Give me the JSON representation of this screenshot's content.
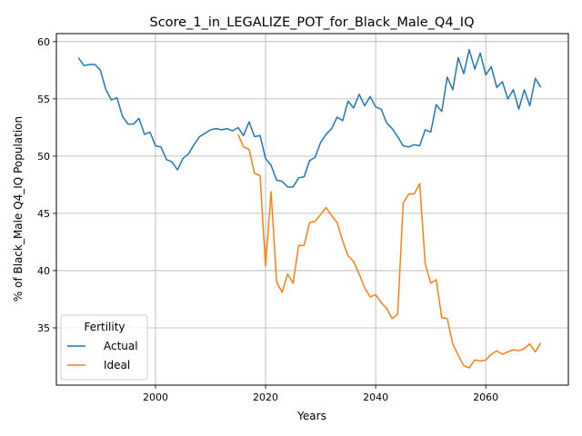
{
  "chart_data": {
    "type": "line",
    "title": "Score_1_in_LEGALIZE_POT_for_Black_Male_Q4_IQ",
    "xlabel": "Years",
    "ylabel": "% of Black_Male Q4_IQ Population",
    "xlim": [
      1982,
      2075
    ],
    "ylim": [
      30,
      60.7
    ],
    "xticks": [
      2000,
      2020,
      2040,
      2060
    ],
    "yticks": [
      35,
      40,
      45,
      50,
      55,
      60
    ],
    "grid": true,
    "legend": {
      "title": "Fertility",
      "placement": "lower-left"
    },
    "series": [
      {
        "name": "Actual",
        "color": "#1f77b4",
        "x": [
          1986,
          1987,
          1988,
          1989,
          1990,
          1991,
          1992,
          1993,
          1994,
          1995,
          1996,
          1997,
          1998,
          1999,
          2000,
          2001,
          2002,
          2003,
          2004,
          2005,
          2006,
          2007,
          2008,
          2009,
          2010,
          2011,
          2012,
          2013,
          2014,
          2015,
          2016,
          2017,
          2018,
          2019,
          2020,
          2021,
          2022,
          2023,
          2024,
          2025,
          2026,
          2027,
          2028,
          2029,
          2030,
          2031,
          2032,
          2033,
          2034,
          2035,
          2036,
          2037,
          2038,
          2039,
          2040,
          2041,
          2042,
          2043,
          2044,
          2045,
          2046,
          2047,
          2048,
          2049,
          2050,
          2051,
          2052,
          2053,
          2054,
          2055,
          2056,
          2057,
          2058,
          2059,
          2060,
          2061,
          2062,
          2063,
          2064,
          2065,
          2066,
          2067,
          2068,
          2069,
          2070
        ],
        "values": [
          58.6,
          57.9,
          58.0,
          58.0,
          57.5,
          55.8,
          54.9,
          55.1,
          53.5,
          52.8,
          52.8,
          53.3,
          51.9,
          52.1,
          50.9,
          50.8,
          49.7,
          49.5,
          48.8,
          49.8,
          50.2,
          51.0,
          51.7,
          52.0,
          52.3,
          52.4,
          52.3,
          52.4,
          52.2,
          52.5,
          51.8,
          53.0,
          51.7,
          51.8,
          49.8,
          49.2,
          47.9,
          47.8,
          47.3,
          47.3,
          48.1,
          48.2,
          49.6,
          49.9,
          51.2,
          51.9,
          52.4,
          53.4,
          53.1,
          54.8,
          54.2,
          55.4,
          54.4,
          55.2,
          54.3,
          54.1,
          52.9,
          52.4,
          51.7,
          50.9,
          50.8,
          51.0,
          50.9,
          52.3,
          52.1,
          54.5,
          53.9,
          56.9,
          55.8,
          58.6,
          57.2,
          59.3,
          57.6,
          59.0,
          57.1,
          57.8,
          56.0,
          56.5,
          55.0,
          55.8,
          54.1,
          55.8,
          54.4,
          56.8,
          56.0
        ]
      },
      {
        "name": "Ideal",
        "color": "#ff7f0e",
        "x": [
          2015,
          2016,
          2017,
          2018,
          2019,
          2020,
          2021,
          2022,
          2023,
          2024,
          2025,
          2026,
          2027,
          2028,
          2029,
          2030,
          2031,
          2032,
          2033,
          2034,
          2035,
          2036,
          2037,
          2038,
          2039,
          2040,
          2041,
          2042,
          2043,
          2044,
          2045,
          2046,
          2047,
          2048,
          2049,
          2050,
          2051,
          2052,
          2053,
          2054,
          2055,
          2056,
          2057,
          2058,
          2059,
          2060,
          2061,
          2062,
          2063,
          2064,
          2065,
          2066,
          2067,
          2068,
          2069,
          2070
        ],
        "values": [
          51.9,
          50.8,
          50.6,
          48.5,
          48.3,
          40.4,
          46.9,
          39.0,
          38.1,
          39.7,
          38.9,
          42.2,
          42.2,
          44.2,
          44.3,
          44.9,
          45.5,
          44.8,
          44.2,
          42.6,
          41.3,
          40.8,
          39.7,
          38.5,
          37.7,
          37.9,
          37.2,
          36.7,
          35.8,
          36.2,
          45.9,
          46.7,
          46.7,
          47.6,
          40.6,
          38.9,
          39.2,
          35.9,
          35.8,
          33.6,
          32.6,
          31.7,
          31.5,
          32.2,
          32.1,
          32.2,
          32.7,
          33.0,
          32.7,
          32.9,
          33.1,
          33.0,
          33.2,
          33.6,
          32.9,
          33.7
        ]
      }
    ]
  }
}
